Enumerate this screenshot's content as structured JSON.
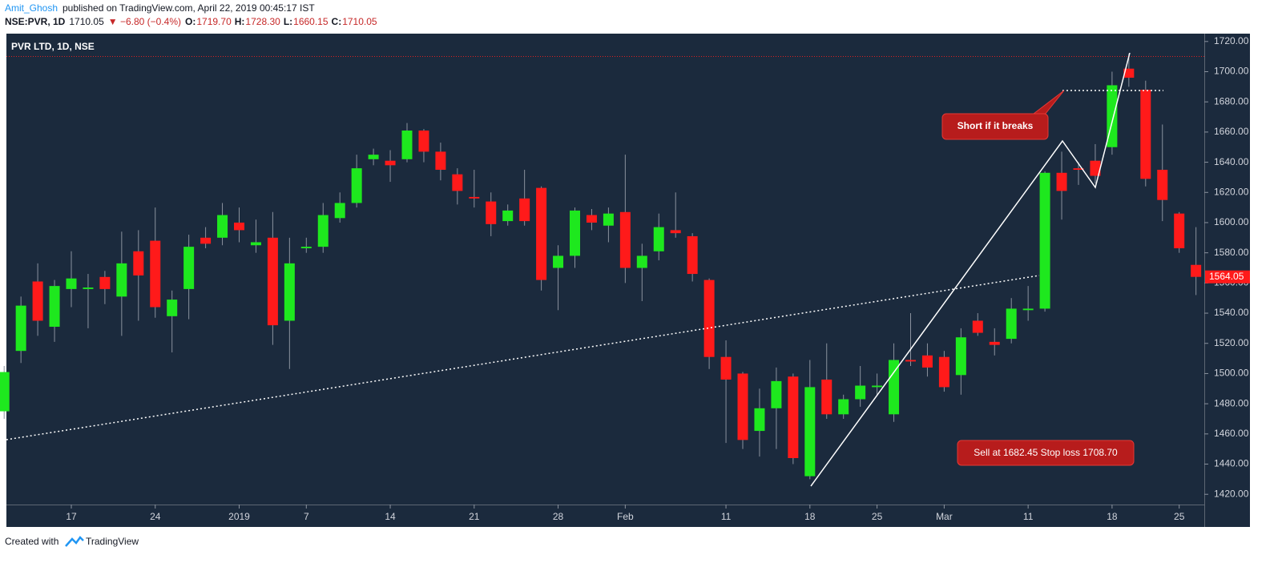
{
  "header": {
    "author": "Amit_Ghosh",
    "published": "published on TradingView.com, April 22, 2019 00:45:17 IST",
    "symbol": "NSE:PVR, 1D",
    "last": "1710.05",
    "change": "▼ −6.80 (−0.4%)",
    "ohlc": [
      {
        "label": "O:",
        "value": "1719.70"
      },
      {
        "label": "H:",
        "value": "1728.30"
      },
      {
        "label": "L:",
        "value": "1660.15"
      },
      {
        "label": "C:",
        "value": "1710.05"
      }
    ]
  },
  "footer": {
    "text": "Created with",
    "brand": "TradingView"
  },
  "chart_data": {
    "type": "candlestick",
    "title": "PVR LTD, 1D, NSE",
    "categories": [
      null,
      null,
      null,
      null,
      "17",
      null,
      null,
      null,
      null,
      "24",
      null,
      null,
      null,
      null,
      "2019",
      null,
      null,
      null,
      "7",
      null,
      null,
      null,
      null,
      "14",
      null,
      null,
      null,
      null,
      "21",
      null,
      null,
      null,
      null,
      "28",
      null,
      null,
      null,
      "Feb",
      null,
      null,
      null,
      null,
      null,
      "11",
      null,
      null,
      null,
      null,
      "18",
      null,
      null,
      null,
      "25",
      null,
      null,
      null,
      "Mar",
      null,
      null,
      null,
      null,
      "11",
      null,
      null,
      null,
      null,
      "18",
      null,
      null,
      null,
      "25",
      null
    ],
    "open": [
      1475,
      1515,
      1561,
      1531,
      1556,
      1556,
      1564,
      1551,
      1581,
      1588,
      1538,
      1556,
      1590,
      1590,
      1600,
      1585,
      1590,
      1535,
      1583,
      1584,
      1603,
      1613,
      1642,
      1641,
      1642,
      1661,
      1647,
      1632,
      1617,
      1614,
      1601,
      1616,
      1623,
      1570,
      1578,
      1605,
      1598,
      1607,
      1570,
      1581,
      1595,
      1591,
      1562,
      1511,
      1500,
      1462,
      1477,
      1498,
      1432,
      1496,
      1473,
      1483,
      1491,
      1473,
      1509,
      1512,
      1511,
      1499,
      1535,
      1521,
      1523,
      1542,
      1543,
      1633,
      1636,
      1641,
      1650,
      1702,
      1688,
      1635,
      1606,
      1572
    ],
    "high": [
      1505,
      1551,
      1573,
      1562,
      1581,
      1566,
      1568,
      1594,
      1595,
      1610,
      1555,
      1592,
      1597,
      1613,
      1610,
      1602,
      1607,
      1590,
      1590,
      1613,
      1620,
      1645,
      1649,
      1648,
      1666,
      1662,
      1653,
      1636,
      1635,
      1620,
      1612,
      1635,
      1624,
      1585,
      1610,
      1609,
      1610,
      1645,
      1586,
      1606,
      1620,
      1593,
      1563,
      1522,
      1501,
      1490,
      1504,
      1500,
      1509,
      1520,
      1486,
      1505,
      1500,
      1520,
      1540,
      1520,
      1515,
      1530,
      1540,
      1530,
      1550,
      1558,
      1634,
      1647,
      1640,
      1652,
      1700,
      1712,
      1694,
      1665,
      1607,
      1597
    ],
    "low": [
      1470,
      1507,
      1525,
      1521,
      1544,
      1530,
      1546,
      1525,
      1535,
      1537,
      1514,
      1536,
      1583,
      1585,
      1587,
      1580,
      1519,
      1503,
      1580,
      1580,
      1600,
      1610,
      1638,
      1627,
      1640,
      1640,
      1628,
      1612,
      1610,
      1591,
      1598,
      1598,
      1555,
      1542,
      1570,
      1595,
      1587,
      1560,
      1548,
      1575,
      1590,
      1561,
      1503,
      1454,
      1450,
      1445,
      1450,
      1440,
      1430,
      1470,
      1470,
      1478,
      1485,
      1468,
      1505,
      1498,
      1488,
      1486,
      1525,
      1512,
      1520,
      1535,
      1541,
      1602,
      1625,
      1626,
      1645,
      1690,
      1624,
      1601,
      1580,
      1552
    ],
    "close": [
      1501,
      1545,
      1535,
      1558,
      1563,
      1557,
      1556,
      1573,
      1565,
      1544,
      1549,
      1584,
      1586,
      1605,
      1595,
      1587,
      1532,
      1573,
      1584,
      1605,
      1613,
      1636,
      1645,
      1638,
      1661,
      1647,
      1635,
      1621,
      1616,
      1599,
      1608,
      1601,
      1562,
      1578,
      1608,
      1600,
      1606,
      1570,
      1578,
      1597,
      1593,
      1566,
      1511,
      1496,
      1456,
      1477,
      1495,
      1444,
      1491,
      1473,
      1483,
      1492,
      1492,
      1509,
      1508,
      1504,
      1491,
      1524,
      1527,
      1519,
      1543,
      1543,
      1633,
      1621,
      1635,
      1631,
      1691,
      1696,
      1629,
      1615,
      1583,
      1564.05
    ],
    "up_color": "#1ee81e",
    "down_color": "#ff1a1a",
    "price_line": 1710.05,
    "price_line_color": "#e02020",
    "ylim": [
      1413.22,
      1725.2
    ],
    "yticks": [
      {
        "value": 1420,
        "label": "1420.00"
      },
      {
        "value": 1440,
        "label": "1440.00"
      },
      {
        "value": 1460,
        "label": "1460.00"
      },
      {
        "value": 1480,
        "label": "1480.00"
      },
      {
        "value": 1500,
        "label": "1500.00"
      },
      {
        "value": 1520,
        "label": "1520.00"
      },
      {
        "value": 1540,
        "label": "1540.00"
      },
      {
        "value": 1560,
        "label": "1560.00"
      },
      {
        "value": 1580,
        "label": "1580.00"
      },
      {
        "value": 1600,
        "label": "1600.00"
      },
      {
        "value": 1620,
        "label": "1620.00"
      },
      {
        "value": 1640,
        "label": "1640.00"
      },
      {
        "value": 1660,
        "label": "1660.00"
      },
      {
        "value": 1680,
        "label": "1680.00"
      },
      {
        "value": 1700,
        "label": "1700.00"
      },
      {
        "value": 1720,
        "label": "1720.00"
      }
    ],
    "annotations": [
      "Short if it breaks",
      "Sell at 1682.45 Stop loss 1708.70"
    ]
  }
}
